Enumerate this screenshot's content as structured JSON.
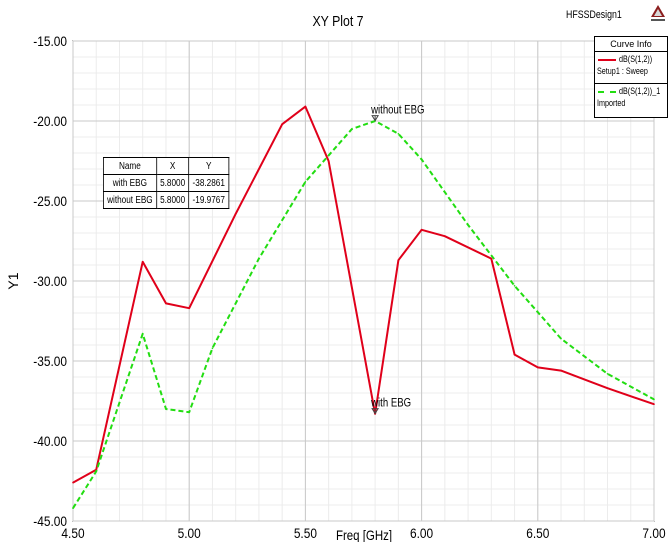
{
  "app": {
    "design_name": "HFSSDesign1",
    "logo_text": "ANSOFT",
    "logo_icon": "ansoft-logo-icon"
  },
  "legend": {
    "title": "Curve Info",
    "entries": [
      {
        "name": "dB(S(1,2))",
        "desc": "Setup1 : Sweep",
        "color": "#e0001a",
        "style": "solid"
      },
      {
        "name": "dB(S(1,2))_1",
        "desc": "Imported",
        "color": "#22dd11",
        "style": "dashed"
      }
    ]
  },
  "marker_table": {
    "headers": [
      "Name",
      "X",
      "Y"
    ],
    "rows": [
      [
        "with EBG",
        "5.8000",
        "-38.2861"
      ],
      [
        "without EBG",
        "5.8000",
        "-19.9767"
      ]
    ]
  },
  "chart_data": {
    "type": "line",
    "title": "XY Plot 7",
    "xlabel": "Freq [GHz]",
    "ylabel": "Y1",
    "xlim": [
      4.5,
      7.0
    ],
    "ylim": [
      -45.0,
      -15.0
    ],
    "x_ticks": [
      "4.50",
      "5.00",
      "5.50",
      "6.00",
      "6.50",
      "7.00"
    ],
    "x_tick_values": [
      4.5,
      5.0,
      5.5,
      6.0,
      6.5,
      7.0
    ],
    "y_ticks": [
      "-15.00",
      "-20.00",
      "-25.00",
      "-30.00",
      "-35.00",
      "-40.00",
      "-45.00"
    ],
    "y_tick_values": [
      -15,
      -20,
      -25,
      -30,
      -35,
      -40,
      -45
    ],
    "grid": true,
    "legend_position": "top-right",
    "series": [
      {
        "name": "dB(S(1,2))",
        "color": "#e0001a",
        "style": "solid",
        "x": [
          4.5,
          4.6,
          4.8,
          4.9,
          5.0,
          5.2,
          5.4,
          5.5,
          5.6,
          5.8,
          5.9,
          6.0,
          6.1,
          6.3,
          6.4,
          6.5,
          6.6,
          6.8,
          7.0
        ],
        "y": [
          -42.6,
          -41.8,
          -28.8,
          -31.4,
          -31.7,
          -25.8,
          -20.2,
          -19.1,
          -22.5,
          -38.3,
          -28.7,
          -26.8,
          -27.2,
          -28.6,
          -34.6,
          -35.4,
          -35.6,
          -36.7,
          -37.7
        ]
      },
      {
        "name": "dB(S(1,2))_1",
        "color": "#22dd11",
        "style": "dashed",
        "x": [
          4.5,
          4.6,
          4.8,
          4.9,
          5.0,
          5.1,
          5.3,
          5.5,
          5.7,
          5.8,
          5.9,
          6.0,
          6.2,
          6.4,
          6.6,
          6.8,
          7.0
        ],
        "y": [
          -44.2,
          -41.9,
          -33.3,
          -38.0,
          -38.2,
          -34.2,
          -28.6,
          -23.8,
          -20.5,
          -20.0,
          -20.8,
          -22.4,
          -26.5,
          -30.3,
          -33.6,
          -35.8,
          -37.4
        ]
      }
    ],
    "markers": [
      {
        "label": "without EBG",
        "x": 5.8,
        "y": -19.9767
      },
      {
        "label": "with EBG",
        "x": 5.8,
        "y": -38.2861
      }
    ]
  }
}
